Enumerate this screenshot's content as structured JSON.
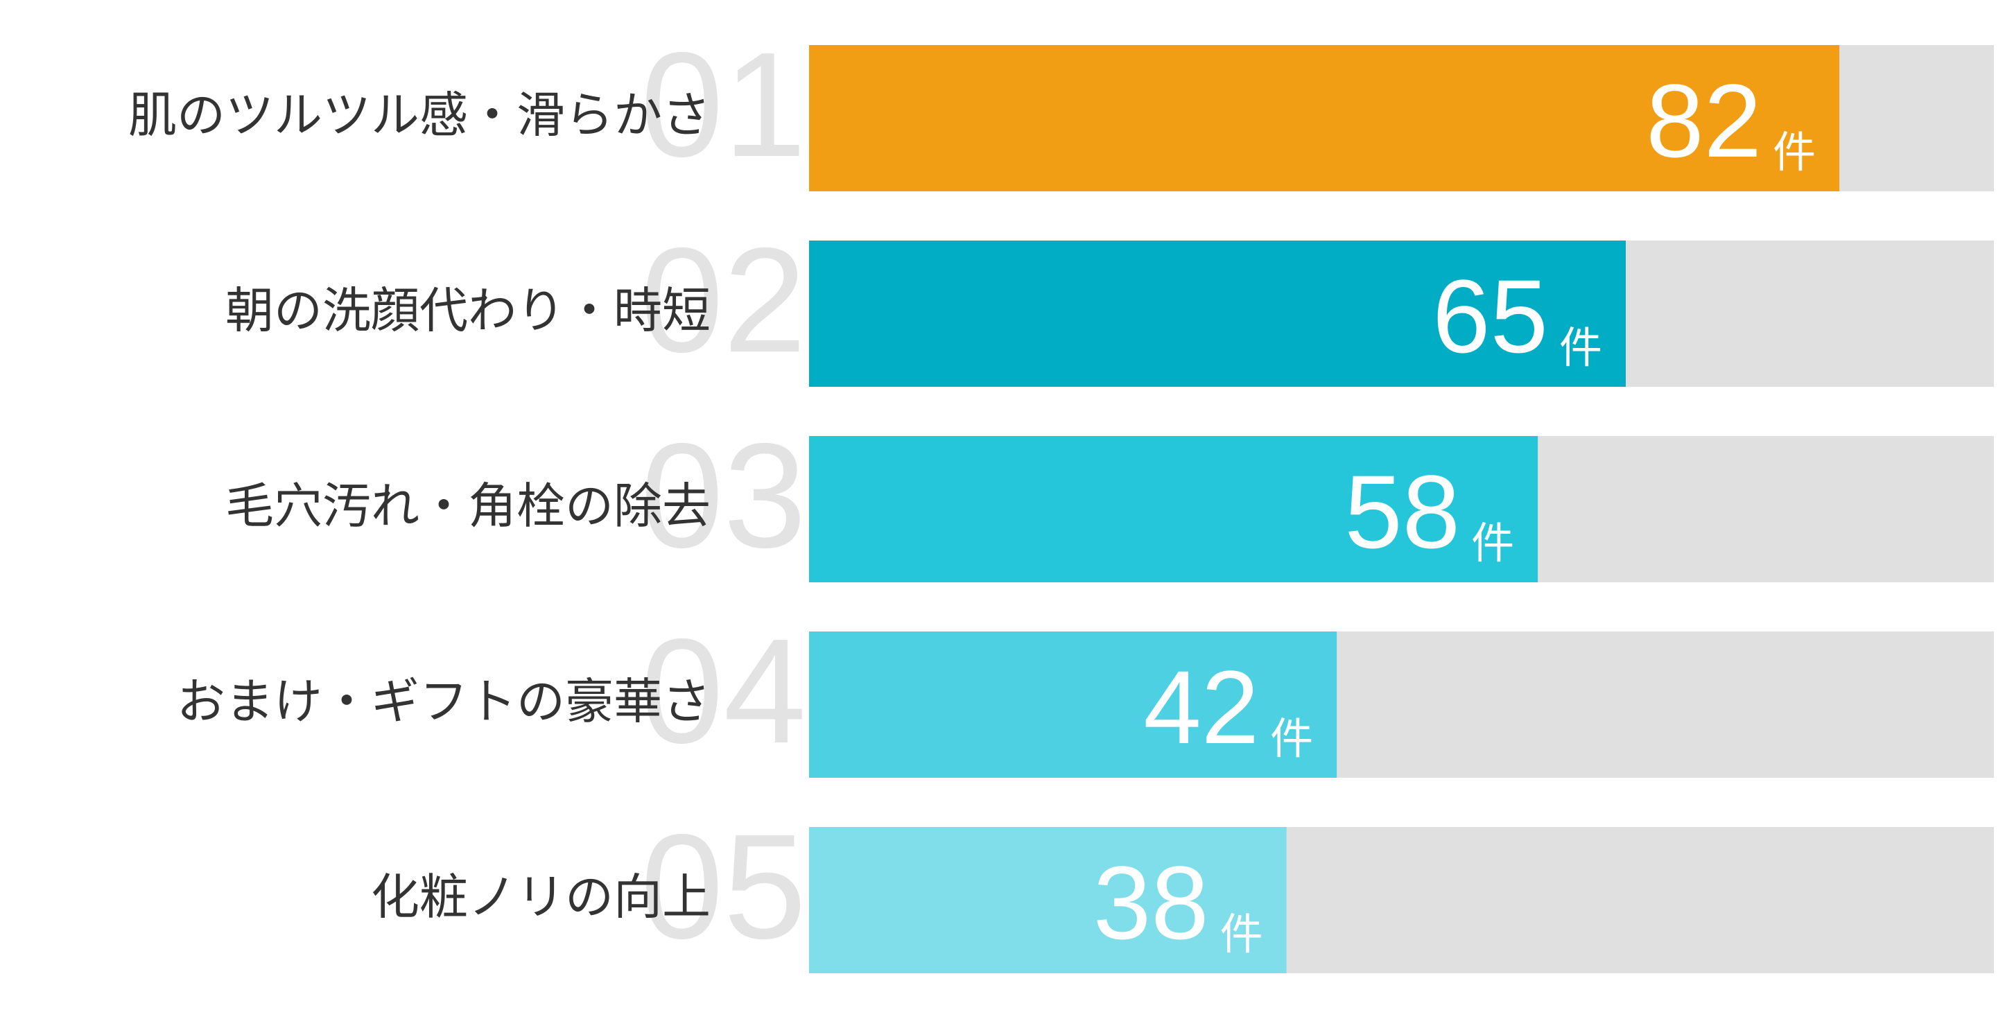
{
  "chart_data": {
    "type": "bar",
    "ranks": [
      "01",
      "02",
      "03",
      "04",
      "05"
    ],
    "categories": [
      "肌のツルツル感・滑らかさ",
      "朝の洗顔代わり・時短",
      "毛穴汚れ・角栓の除去",
      "おまけ・ギフトの豪華さ",
      "化粧ノリの向上"
    ],
    "values": [
      82,
      65,
      58,
      42,
      38
    ],
    "value_unit": "件",
    "colors": [
      "#f29e14",
      "#00adc4",
      "#26c6da",
      "#4dd0e1",
      "#80deea"
    ],
    "track_color": "#e0e0e0",
    "xlim": [
      0,
      94.3
    ]
  }
}
